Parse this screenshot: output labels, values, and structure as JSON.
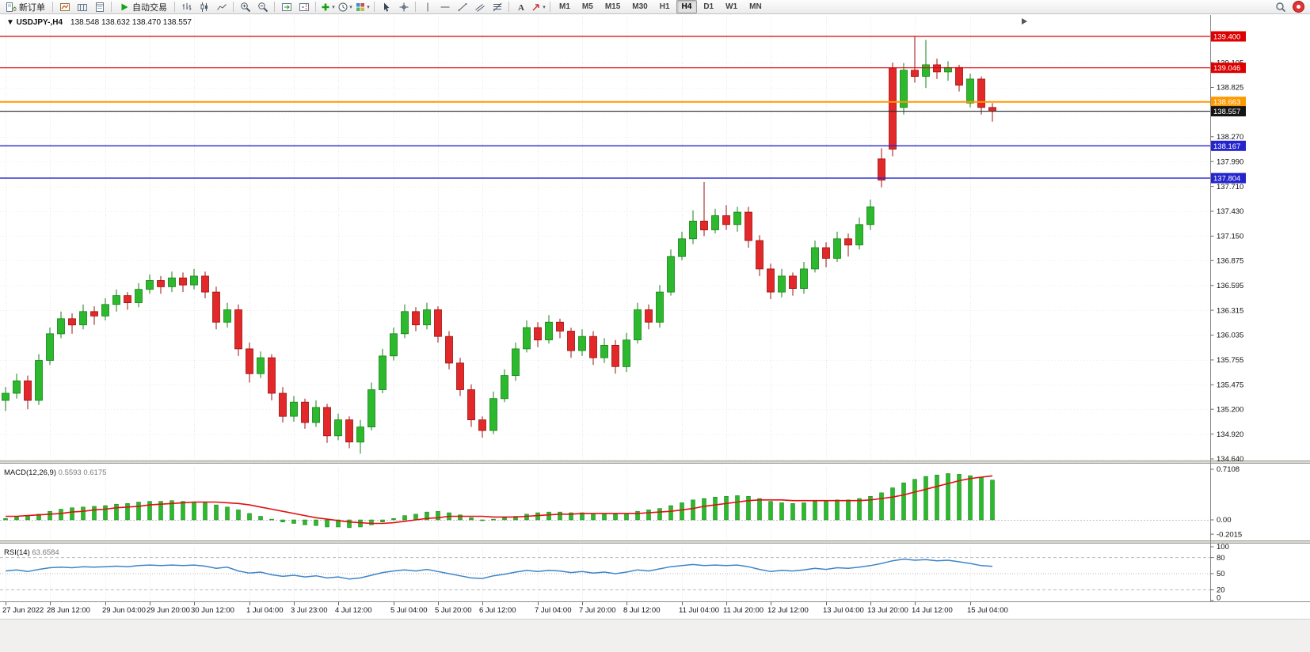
{
  "toolbar": {
    "new_order_label": "新订单",
    "autotrading_label": "自动交易",
    "timeframes": [
      "M1",
      "M5",
      "M15",
      "M30",
      "H1",
      "H4",
      "D1",
      "W1",
      "MN"
    ],
    "active_timeframe": "H4",
    "icons": [
      "new-order",
      "new-chart",
      "chart-profiles",
      "data-window",
      "autotrading-play",
      "bar-chart",
      "candlestick-chart",
      "line-chart",
      "zoom-in",
      "zoom-out",
      "auto-scroll",
      "chart-shift",
      "indicators-add",
      "periods",
      "templates",
      "cursor",
      "crosshair",
      "vertical-line",
      "horizontal-line",
      "trendline",
      "equidistant-channel",
      "fibonacci-retracement",
      "text-label",
      "arrow-objects",
      "search",
      "account-badge"
    ]
  },
  "chart_data": [
    {
      "type": "candlestick",
      "title": "USDJPY-,H4",
      "ohlc_text": "138.548 138.632 138.470 138.557",
      "open": 138.548,
      "high": 138.632,
      "low": 138.47,
      "close": 138.557,
      "y_top": 139.632,
      "y_bottom": 134.64,
      "colors": {
        "up": "#2db92d",
        "down": "#e22828"
      },
      "y_ticks": [
        139.105,
        138.825,
        138.545,
        138.27,
        137.99,
        137.71,
        137.43,
        137.15,
        136.875,
        136.595,
        136.315,
        136.035,
        135.755,
        135.475,
        135.2,
        134.92,
        134.64
      ],
      "h_lines": [
        {
          "p": 139.4,
          "c": "#dd0000",
          "w": 1.2
        },
        {
          "p": 139.046,
          "c": "#dd0000",
          "w": 1.2
        },
        {
          "p": 138.663,
          "c": "#ff9900",
          "w": 2
        },
        {
          "p": 138.167,
          "c": "#2424cd",
          "w": 1.4
        },
        {
          "p": 137.804,
          "c": "#2424cd",
          "w": 1.4
        }
      ],
      "current": {
        "p": 138.557,
        "c": "#2a2a2a",
        "badge": "#151515"
      },
      "x_labels": [
        {
          "i": 0,
          "t": "27 Jun 2022"
        },
        {
          "i": 4,
          "t": "28 Jun 12:00"
        },
        {
          "i": 9,
          "t": "29 Jun 04:00"
        },
        {
          "i": 13,
          "t": "29 Jun 20:00"
        },
        {
          "i": 17,
          "t": "30 Jun 12:00"
        },
        {
          "i": 22,
          "t": "1 Jul 04:00"
        },
        {
          "i": 26,
          "t": "3 Jul 23:00"
        },
        {
          "i": 30,
          "t": "4 Jul 12:00"
        },
        {
          "i": 35,
          "t": "5 Jul 04:00"
        },
        {
          "i": 39,
          "t": "5 Jul 20:00"
        },
        {
          "i": 43,
          "t": "6 Jul 12:00"
        },
        {
          "i": 48,
          "t": "7 Jul 04:00"
        },
        {
          "i": 52,
          "t": "7 Jul 20:00"
        },
        {
          "i": 56,
          "t": "8 Jul 12:00"
        },
        {
          "i": 61,
          "t": "11 Jul 04:00"
        },
        {
          "i": 65,
          "t": "11 Jul 20:00"
        },
        {
          "i": 69,
          "t": "12 Jul 12:00"
        },
        {
          "i": 74,
          "t": "13 Jul 04:00"
        },
        {
          "i": 78,
          "t": "13 Jul 20:00"
        },
        {
          "i": 82,
          "t": "14 Jul 12:00"
        },
        {
          "i": 87,
          "t": "15 Jul 04:00"
        }
      ],
      "candles": [
        [
          135.3,
          135.45,
          135.18,
          135.38
        ],
        [
          135.38,
          135.6,
          135.32,
          135.52
        ],
        [
          135.52,
          135.58,
          135.2,
          135.3
        ],
        [
          135.3,
          135.82,
          135.25,
          135.75
        ],
        [
          135.75,
          136.12,
          135.7,
          136.05
        ],
        [
          136.05,
          136.3,
          136.0,
          136.22
        ],
        [
          136.22,
          136.28,
          136.05,
          136.15
        ],
        [
          136.15,
          136.38,
          136.1,
          136.3
        ],
        [
          136.3,
          136.36,
          136.15,
          136.25
        ],
        [
          136.25,
          136.45,
          136.2,
          136.38
        ],
        [
          136.38,
          136.55,
          136.3,
          136.48
        ],
        [
          136.48,
          136.52,
          136.32,
          136.4
        ],
        [
          136.4,
          136.62,
          136.35,
          136.55
        ],
        [
          136.55,
          136.72,
          136.5,
          136.65
        ],
        [
          136.65,
          136.7,
          136.5,
          136.58
        ],
        [
          136.58,
          136.75,
          136.52,
          136.68
        ],
        [
          136.68,
          136.74,
          136.52,
          136.6
        ],
        [
          136.6,
          136.78,
          136.55,
          136.7
        ],
        [
          136.7,
          136.75,
          136.45,
          136.52
        ],
        [
          136.52,
          136.58,
          136.1,
          136.18
        ],
        [
          136.18,
          136.4,
          136.12,
          136.32
        ],
        [
          136.32,
          136.38,
          135.8,
          135.88
        ],
        [
          135.88,
          135.95,
          135.5,
          135.6
        ],
        [
          135.6,
          135.85,
          135.55,
          135.78
        ],
        [
          135.78,
          135.82,
          135.3,
          135.38
        ],
        [
          135.38,
          135.45,
          135.05,
          135.12
        ],
        [
          135.12,
          135.35,
          135.06,
          135.28
        ],
        [
          135.28,
          135.32,
          134.98,
          135.05
        ],
        [
          135.05,
          135.3,
          135.0,
          135.22
        ],
        [
          135.22,
          135.26,
          134.82,
          134.9
        ],
        [
          134.9,
          135.15,
          134.85,
          135.08
        ],
        [
          135.08,
          135.12,
          134.76,
          134.83
        ],
        [
          134.83,
          135.08,
          134.7,
          135.0
        ],
        [
          135.0,
          135.5,
          134.96,
          135.42
        ],
        [
          135.42,
          135.88,
          135.38,
          135.8
        ],
        [
          135.8,
          136.12,
          135.75,
          136.05
        ],
        [
          136.05,
          136.38,
          136.0,
          136.3
        ],
        [
          136.3,
          136.35,
          136.08,
          136.15
        ],
        [
          136.15,
          136.4,
          136.1,
          136.32
        ],
        [
          136.32,
          136.36,
          135.95,
          136.02
        ],
        [
          136.02,
          136.08,
          135.65,
          135.72
        ],
        [
          135.72,
          135.78,
          135.35,
          135.42
        ],
        [
          135.42,
          135.48,
          135.0,
          135.08
        ],
        [
          135.08,
          135.12,
          134.88,
          134.96
        ],
        [
          134.96,
          135.4,
          134.92,
          135.32
        ],
        [
          135.32,
          135.65,
          135.28,
          135.58
        ],
        [
          135.58,
          135.95,
          135.52,
          135.88
        ],
        [
          135.88,
          136.2,
          135.84,
          136.12
        ],
        [
          136.12,
          136.18,
          135.9,
          135.98
        ],
        [
          135.98,
          136.26,
          135.94,
          136.18
        ],
        [
          136.18,
          136.22,
          136.0,
          136.08
        ],
        [
          136.08,
          136.12,
          135.78,
          135.86
        ],
        [
          135.86,
          136.1,
          135.8,
          136.02
        ],
        [
          136.02,
          136.08,
          135.7,
          135.78
        ],
        [
          135.78,
          136.0,
          135.72,
          135.92
        ],
        [
          135.92,
          135.98,
          135.6,
          135.68
        ],
        [
          135.68,
          136.06,
          135.62,
          135.98
        ],
        [
          135.98,
          136.4,
          135.94,
          136.32
        ],
        [
          136.32,
          136.38,
          136.1,
          136.18
        ],
        [
          136.18,
          136.6,
          136.12,
          136.52
        ],
        [
          136.52,
          137.0,
          136.48,
          136.92
        ],
        [
          136.92,
          137.2,
          136.88,
          137.12
        ],
        [
          137.12,
          137.44,
          137.06,
          137.32
        ],
        [
          137.32,
          137.76,
          137.15,
          137.22
        ],
        [
          137.22,
          137.46,
          137.18,
          137.38
        ],
        [
          137.38,
          137.5,
          137.22,
          137.28
        ],
        [
          137.28,
          137.48,
          137.2,
          137.42
        ],
        [
          137.42,
          137.48,
          137.02,
          137.1
        ],
        [
          137.1,
          137.16,
          136.7,
          136.78
        ],
        [
          136.78,
          136.84,
          136.44,
          136.52
        ],
        [
          136.52,
          136.78,
          136.46,
          136.7
        ],
        [
          136.7,
          136.74,
          136.48,
          136.56
        ],
        [
          136.56,
          136.86,
          136.5,
          136.78
        ],
        [
          136.78,
          137.1,
          136.74,
          137.02
        ],
        [
          137.02,
          137.08,
          136.8,
          136.9
        ],
        [
          136.9,
          137.2,
          136.86,
          137.12
        ],
        [
          137.12,
          137.18,
          136.92,
          137.05
        ],
        [
          137.05,
          137.36,
          137.0,
          137.28
        ],
        [
          137.28,
          137.56,
          137.22,
          137.48
        ],
        [
          138.02,
          138.14,
          137.7,
          137.78
        ],
        [
          139.046,
          139.105,
          138.05,
          138.13
        ],
        [
          138.6,
          139.1,
          138.52,
          139.02
        ],
        [
          139.02,
          139.4,
          138.88,
          138.95
        ],
        [
          138.95,
          139.36,
          138.82,
          139.08
        ],
        [
          139.08,
          139.15,
          138.92,
          139.0
        ],
        [
          139.0,
          139.12,
          138.9,
          139.05
        ],
        [
          139.05,
          139.08,
          138.78,
          138.85
        ],
        [
          138.65,
          138.98,
          138.6,
          138.92
        ],
        [
          138.92,
          138.95,
          138.52,
          138.6
        ],
        [
          138.6,
          138.65,
          138.44,
          138.557
        ]
      ]
    },
    {
      "type": "macd",
      "label": "MACD(12,26,9)",
      "values_text": "0.5593 0.6175",
      "colors": {
        "histogram": "#2db92d",
        "signal": "#e01010"
      },
      "ticks": [
        {
          "v": 0.7108,
          "t": "0.7108"
        },
        {
          "v": 0,
          "t": "0.00"
        },
        {
          "v": -0.2015,
          "t": "-0.2015"
        }
      ],
      "histogram": [
        0.02,
        0.04,
        0.06,
        0.08,
        0.12,
        0.15,
        0.17,
        0.18,
        0.19,
        0.2,
        0.22,
        0.23,
        0.25,
        0.26,
        0.26,
        0.27,
        0.26,
        0.25,
        0.24,
        0.21,
        0.18,
        0.14,
        0.09,
        0.05,
        0.01,
        -0.03,
        -0.05,
        -0.07,
        -0.08,
        -0.1,
        -0.1,
        -0.11,
        -0.1,
        -0.07,
        -0.03,
        0.02,
        0.06,
        0.08,
        0.11,
        0.12,
        0.1,
        0.07,
        0.03,
        0.0,
        0.01,
        0.03,
        0.05,
        0.08,
        0.1,
        0.11,
        0.11,
        0.1,
        0.1,
        0.09,
        0.09,
        0.08,
        0.09,
        0.12,
        0.14,
        0.16,
        0.2,
        0.24,
        0.28,
        0.3,
        0.32,
        0.33,
        0.34,
        0.33,
        0.3,
        0.26,
        0.24,
        0.23,
        0.24,
        0.26,
        0.27,
        0.28,
        0.28,
        0.3,
        0.33,
        0.38,
        0.45,
        0.52,
        0.57,
        0.61,
        0.63,
        0.65,
        0.64,
        0.62,
        0.6,
        0.5593
      ],
      "signal": [
        0.05,
        0.05,
        0.06,
        0.07,
        0.08,
        0.09,
        0.11,
        0.12,
        0.14,
        0.15,
        0.17,
        0.18,
        0.19,
        0.21,
        0.22,
        0.23,
        0.24,
        0.25,
        0.25,
        0.25,
        0.24,
        0.23,
        0.21,
        0.18,
        0.15,
        0.12,
        0.09,
        0.06,
        0.03,
        0.01,
        -0.01,
        -0.03,
        -0.04,
        -0.05,
        -0.05,
        -0.04,
        -0.02,
        0.0,
        0.02,
        0.03,
        0.05,
        0.05,
        0.05,
        0.05,
        0.04,
        0.04,
        0.04,
        0.05,
        0.06,
        0.07,
        0.08,
        0.08,
        0.09,
        0.09,
        0.09,
        0.09,
        0.09,
        0.09,
        0.1,
        0.11,
        0.12,
        0.14,
        0.16,
        0.19,
        0.21,
        0.23,
        0.25,
        0.27,
        0.28,
        0.28,
        0.28,
        0.27,
        0.27,
        0.27,
        0.27,
        0.27,
        0.27,
        0.27,
        0.28,
        0.3,
        0.32,
        0.35,
        0.39,
        0.43,
        0.47,
        0.51,
        0.55,
        0.58,
        0.6,
        0.6175
      ]
    },
    {
      "type": "rsi",
      "label": "RSI(14)",
      "value_text": "63.6584",
      "colors": {
        "line": "#3d85c8"
      },
      "ticks": [
        100,
        80,
        50,
        20,
        0
      ],
      "levels": [
        80,
        50,
        20
      ],
      "values": [
        55,
        57,
        54,
        58,
        61,
        62,
        61,
        63,
        62,
        63,
        64,
        63,
        65,
        66,
        65,
        66,
        65,
        66,
        64,
        60,
        62,
        55,
        51,
        53,
        48,
        45,
        47,
        44,
        46,
        42,
        44,
        40,
        42,
        47,
        52,
        55,
        57,
        55,
        58,
        54,
        50,
        46,
        42,
        41,
        46,
        49,
        53,
        56,
        54,
        56,
        55,
        52,
        54,
        51,
        53,
        50,
        53,
        57,
        55,
        59,
        63,
        65,
        67,
        65,
        66,
        65,
        66,
        63,
        58,
        54,
        56,
        55,
        57,
        60,
        58,
        61,
        60,
        62,
        65,
        69,
        74,
        77,
        75,
        76,
        74,
        75,
        72,
        69,
        65,
        63.66
      ]
    }
  ]
}
